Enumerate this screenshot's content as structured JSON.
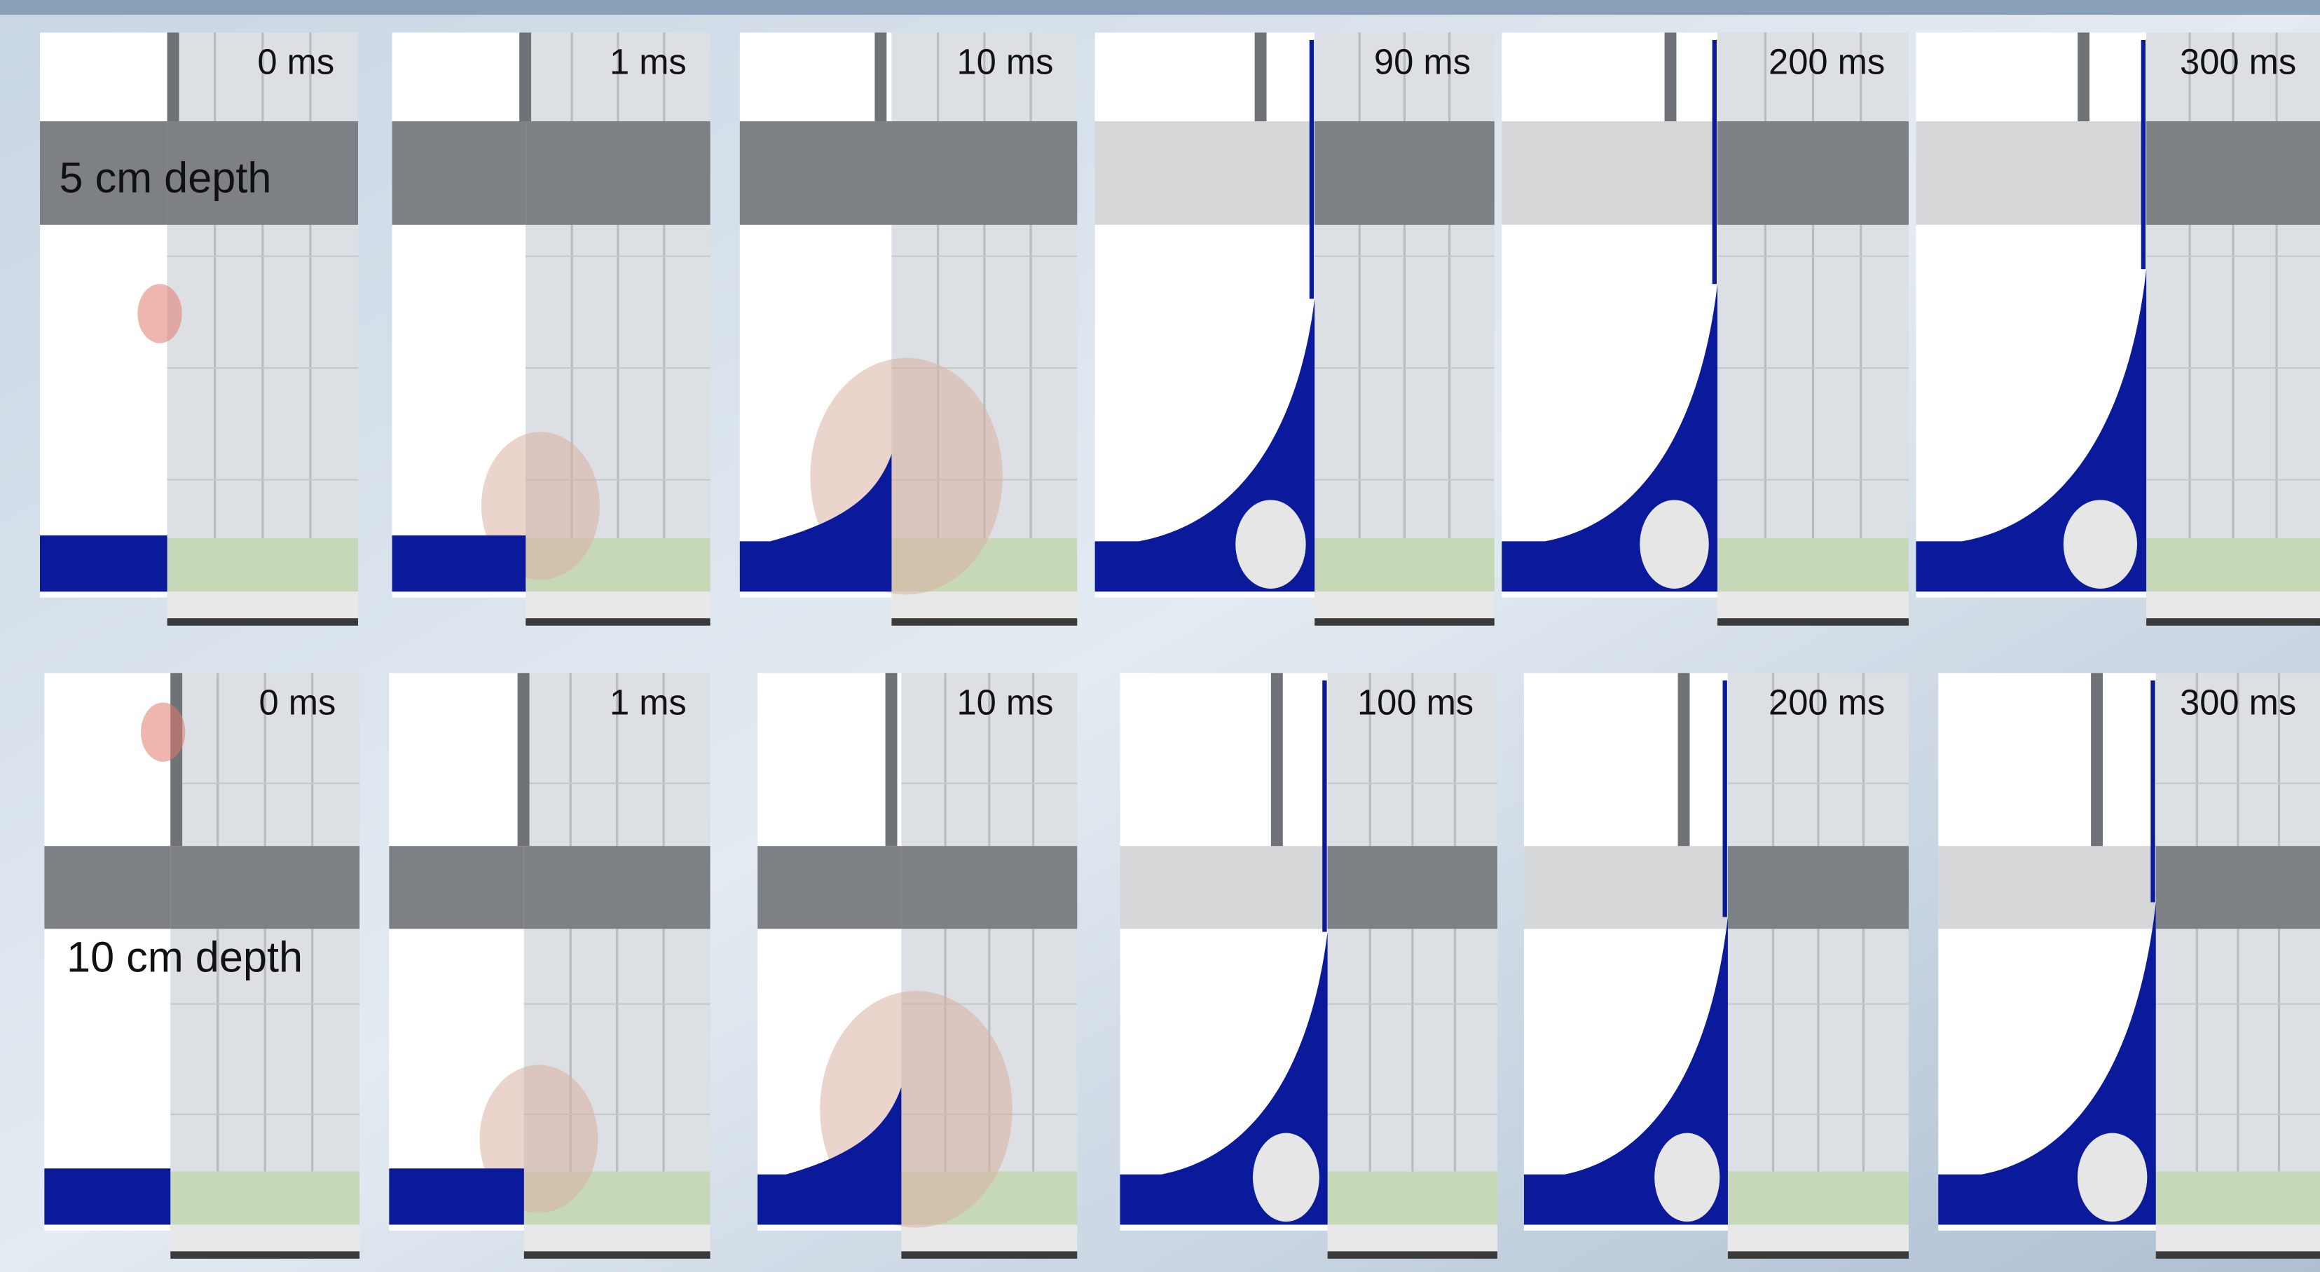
{
  "rows": [
    {
      "label": "5 cm depth",
      "panels": [
        {
          "time": "0 ms"
        },
        {
          "time": "1 ms"
        },
        {
          "time": "10 ms"
        },
        {
          "time": "90 ms"
        },
        {
          "time": "200 ms"
        },
        {
          "time": "300 ms"
        }
      ]
    },
    {
      "label": "10 cm depth",
      "panels": [
        {
          "time": "0 ms"
        },
        {
          "time": "1 ms"
        },
        {
          "time": "10 ms"
        },
        {
          "time": "100 ms"
        },
        {
          "time": "200 ms"
        },
        {
          "time": "300 ms"
        }
      ]
    }
  ]
}
